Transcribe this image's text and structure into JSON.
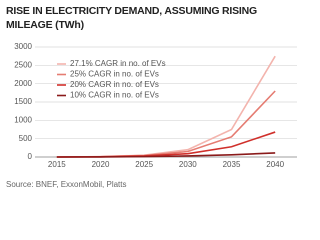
{
  "chart_data": {
    "type": "line",
    "title": "RISE IN ELECTRICITY DEMAND, ASSUMING RISING MILEAGE (TWh)",
    "source": "Source: BNEF, ExxonMobil, Platts",
    "categories": [
      "2015",
      "2020",
      "2025",
      "2030",
      "2035",
      "2040"
    ],
    "series": [
      {
        "name": "27.1% CAGR in no. of EVs",
        "color": "#f3b4ad",
        "values": [
          0,
          10,
          50,
          200,
          750,
          2750
        ]
      },
      {
        "name": "25% CAGR in no. of EVs",
        "color": "#e57c72",
        "values": [
          0,
          10,
          40,
          150,
          550,
          1800
        ]
      },
      {
        "name": "20% CAGR in no. of EVs",
        "color": "#d0302b",
        "values": [
          0,
          5,
          30,
          90,
          280,
          680
        ]
      },
      {
        "name": "10% CAGR in no. of EVs",
        "color": "#8a1a1a",
        "values": [
          0,
          2,
          10,
          30,
          60,
          110
        ]
      }
    ],
    "ylim": [
      0,
      3000
    ],
    "yticks": [
      0,
      500,
      1000,
      1500,
      2000,
      2500,
      3000
    ],
    "grid": true,
    "legend": "upper-left"
  }
}
